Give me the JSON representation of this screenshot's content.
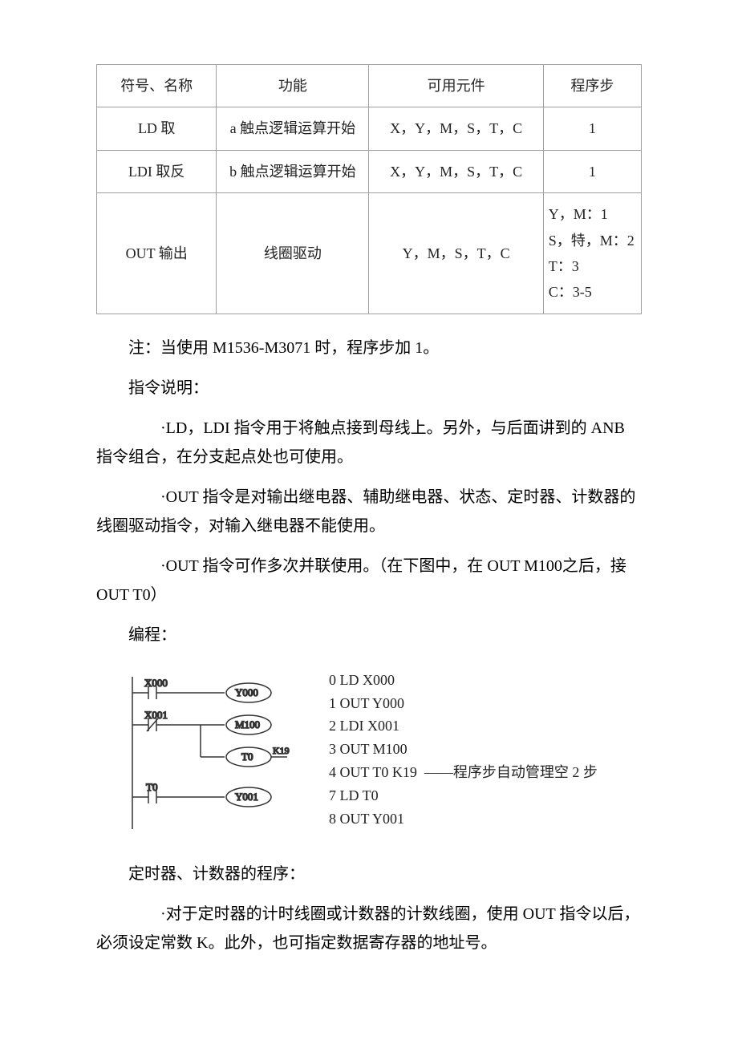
{
  "table": {
    "col_widths": [
      "22%",
      "28%",
      "32%",
      "18%"
    ],
    "header": [
      "符号、名称",
      "功能",
      "可用元件",
      "程序步"
    ],
    "rows": [
      [
        "LD 取",
        "a 触点逻辑运算开始",
        "X，Y，M，S，T，C",
        "1"
      ],
      [
        "LDI 取反",
        "b 触点逻辑运算开始",
        "X，Y，M，S，T，C",
        "1"
      ],
      [
        "OUT 输出",
        "线圈驱动",
        "Y，M，S，T，C",
        "Y，M：1\nS，特，M：2\nT：3\nC：3-5"
      ]
    ]
  },
  "paragraphs": {
    "note": "注：当使用 M1536-M3071 时，程序步加 1。",
    "title_desc": "指令说明：",
    "desc1": "·LD，LDI 指令用于将触点接到母线上。另外，与后面讲到的 ANB 指令组合，在分支起点处也可使用。",
    "desc2": "·OUT 指令是对输出继电器、辅助继电器、状态、定时器、计数器的线圈驱动指令，对输入继电器不能使用。",
    "desc3": "·OUT 指令可作多次并联使用。（在下图中，在 OUT M100之后，接 OUT T0）",
    "title_prog": "编程：",
    "title_timer": "定时器、计数器的程序：",
    "desc4": "·对于定时器的计时线圈或计数器的计数线圈，使用 OUT 指令以后，必须设定常数 K。此外，也可指定数据寄存器的地址号。"
  },
  "ladder": {
    "font_color": "#333333",
    "stroke": "#333333",
    "labels": {
      "x000": "X000",
      "y000": "Y000",
      "x001": "X001",
      "m100": "M100",
      "t0_coil": "T0",
      "k19": "K19",
      "t0_contact": "T0",
      "y001": "Y001"
    }
  },
  "program": [
    "0 LD X000",
    "1 OUT Y000",
    "2 LDI X001",
    "3 OUT M100",
    "4 OUT T0 K19  ——程序步自动管理空 2 步",
    "7 LD T0",
    "8 OUT Y001"
  ]
}
